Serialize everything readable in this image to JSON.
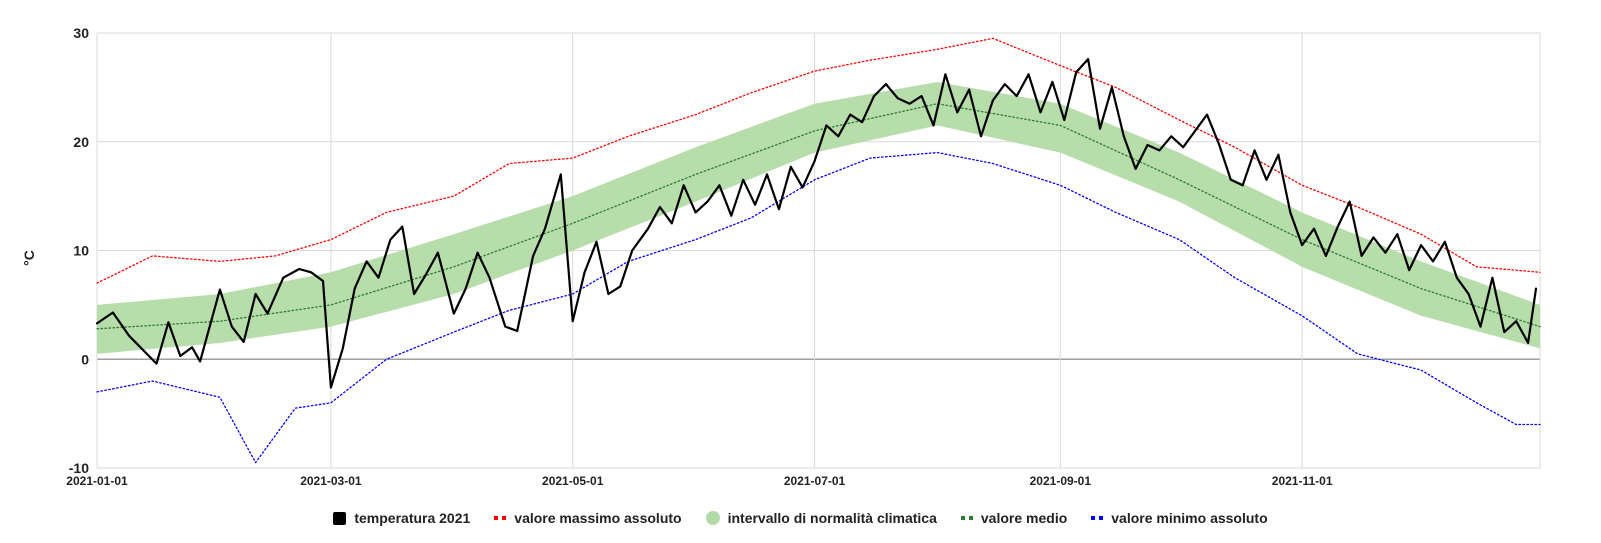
{
  "chart_data": {
    "type": "line",
    "title": "",
    "xlabel": "",
    "ylabel": "°C",
    "ylim": [
      -10,
      30
    ],
    "xlim": [
      "2021-01-01",
      "2021-12-31"
    ],
    "y_ticks": [
      "30",
      "20",
      "10",
      "0",
      "-10"
    ],
    "x_ticks": [
      "2021-01-01",
      "2021-03-01",
      "2021-05-01",
      "2021-07-01",
      "2021-09-01",
      "2021-11-01"
    ],
    "grid": true,
    "legend_placement": "bottom",
    "legend": [
      {
        "key": "temp",
        "label": "temperatura 2021",
        "marker": "square",
        "color": "#000000"
      },
      {
        "key": "max",
        "label": "valore massimo assoluto",
        "marker": "dots",
        "color": "#ff0000"
      },
      {
        "key": "band",
        "label": "intervallo di normalità climatica",
        "marker": "circle",
        "color": "#b3dba6"
      },
      {
        "key": "mean",
        "label": "valore medio",
        "marker": "dots",
        "color": "#2e7d32"
      },
      {
        "key": "min",
        "label": "valore minimo assoluto",
        "marker": "dots",
        "color": "#0000ff"
      }
    ],
    "series": [
      {
        "name": "temperatura 2021",
        "color": "#000000",
        "style": "solid",
        "points": [
          [
            "2021-01-01",
            3.3
          ],
          [
            "2021-01-05",
            4.3
          ],
          [
            "2021-01-09",
            2.2
          ],
          [
            "2021-01-13",
            0.7
          ],
          [
            "2021-01-16",
            -0.4
          ],
          [
            "2021-01-19",
            3.4
          ],
          [
            "2021-01-22",
            0.3
          ],
          [
            "2021-01-25",
            1.1
          ],
          [
            "2021-01-27",
            -0.2
          ],
          [
            "2021-02-01",
            6.4
          ],
          [
            "2021-02-04",
            3.0
          ],
          [
            "2021-02-07",
            1.6
          ],
          [
            "2021-02-10",
            6.0
          ],
          [
            "2021-02-13",
            4.2
          ],
          [
            "2021-02-17",
            7.5
          ],
          [
            "2021-02-21",
            8.3
          ],
          [
            "2021-02-24",
            8.0
          ],
          [
            "2021-02-27",
            7.2
          ],
          [
            "2021-03-01",
            -2.6
          ],
          [
            "2021-03-04",
            1.0
          ],
          [
            "2021-03-07",
            6.5
          ],
          [
            "2021-03-10",
            9.0
          ],
          [
            "2021-03-13",
            7.5
          ],
          [
            "2021-03-16",
            11.0
          ],
          [
            "2021-03-19",
            12.2
          ],
          [
            "2021-03-22",
            6.0
          ],
          [
            "2021-03-25",
            7.8
          ],
          [
            "2021-03-28",
            9.8
          ],
          [
            "2021-04-01",
            4.2
          ],
          [
            "2021-04-04",
            6.5
          ],
          [
            "2021-04-07",
            9.8
          ],
          [
            "2021-04-10",
            7.5
          ],
          [
            "2021-04-14",
            3.0
          ],
          [
            "2021-04-17",
            2.6
          ],
          [
            "2021-04-21",
            9.5
          ],
          [
            "2021-04-24",
            12.0
          ],
          [
            "2021-04-28",
            17.0
          ],
          [
            "2021-05-01",
            3.5
          ],
          [
            "2021-05-04",
            8.0
          ],
          [
            "2021-05-07",
            10.8
          ],
          [
            "2021-05-10",
            6.0
          ],
          [
            "2021-05-13",
            6.7
          ],
          [
            "2021-05-16",
            10.0
          ],
          [
            "2021-05-20",
            12.0
          ],
          [
            "2021-05-23",
            14.0
          ],
          [
            "2021-05-26",
            12.5
          ],
          [
            "2021-05-29",
            16.0
          ],
          [
            "2021-06-01",
            13.5
          ],
          [
            "2021-06-04",
            14.5
          ],
          [
            "2021-06-07",
            16.0
          ],
          [
            "2021-06-10",
            13.2
          ],
          [
            "2021-06-13",
            16.5
          ],
          [
            "2021-06-16",
            14.2
          ],
          [
            "2021-06-19",
            17.0
          ],
          [
            "2021-06-22",
            13.8
          ],
          [
            "2021-06-25",
            17.7
          ],
          [
            "2021-06-28",
            15.8
          ],
          [
            "2021-07-01",
            18.2
          ],
          [
            "2021-07-04",
            21.5
          ],
          [
            "2021-07-07",
            20.5
          ],
          [
            "2021-07-10",
            22.5
          ],
          [
            "2021-07-13",
            21.8
          ],
          [
            "2021-07-16",
            24.2
          ],
          [
            "2021-07-19",
            25.3
          ],
          [
            "2021-07-22",
            24.0
          ],
          [
            "2021-07-25",
            23.5
          ],
          [
            "2021-07-28",
            24.2
          ],
          [
            "2021-07-31",
            21.5
          ],
          [
            "2021-08-03",
            26.2
          ],
          [
            "2021-08-06",
            22.7
          ],
          [
            "2021-08-09",
            24.8
          ],
          [
            "2021-08-12",
            20.5
          ],
          [
            "2021-08-15",
            23.8
          ],
          [
            "2021-08-18",
            25.3
          ],
          [
            "2021-08-21",
            24.2
          ],
          [
            "2021-08-24",
            26.2
          ],
          [
            "2021-08-27",
            22.7
          ],
          [
            "2021-08-30",
            25.5
          ],
          [
            "2021-09-02",
            22.0
          ],
          [
            "2021-09-05",
            26.4
          ],
          [
            "2021-09-08",
            27.6
          ],
          [
            "2021-09-11",
            21.2
          ],
          [
            "2021-09-14",
            25.0
          ],
          [
            "2021-09-17",
            20.5
          ],
          [
            "2021-09-20",
            17.5
          ],
          [
            "2021-09-23",
            19.7
          ],
          [
            "2021-09-26",
            19.2
          ],
          [
            "2021-09-29",
            20.5
          ],
          [
            "2021-10-02",
            19.5
          ],
          [
            "2021-10-05",
            21.0
          ],
          [
            "2021-10-08",
            22.5
          ],
          [
            "2021-10-11",
            19.8
          ],
          [
            "2021-10-14",
            16.5
          ],
          [
            "2021-10-17",
            16.0
          ],
          [
            "2021-10-20",
            19.2
          ],
          [
            "2021-10-23",
            16.5
          ],
          [
            "2021-10-26",
            18.8
          ],
          [
            "2021-10-29",
            13.5
          ],
          [
            "2021-11-01",
            10.5
          ],
          [
            "2021-11-04",
            12.0
          ],
          [
            "2021-11-07",
            9.5
          ],
          [
            "2021-11-10",
            12.2
          ],
          [
            "2021-11-13",
            14.5
          ],
          [
            "2021-11-16",
            9.5
          ],
          [
            "2021-11-19",
            11.2
          ],
          [
            "2021-11-22",
            9.8
          ],
          [
            "2021-11-25",
            11.5
          ],
          [
            "2021-11-28",
            8.2
          ],
          [
            "2021-12-01",
            10.5
          ],
          [
            "2021-12-04",
            9.0
          ],
          [
            "2021-12-07",
            10.8
          ],
          [
            "2021-12-10",
            7.5
          ],
          [
            "2021-12-13",
            6.0
          ],
          [
            "2021-12-16",
            3.0
          ],
          [
            "2021-12-19",
            7.5
          ],
          [
            "2021-12-22",
            2.5
          ],
          [
            "2021-12-25",
            3.5
          ],
          [
            "2021-12-28",
            1.5
          ],
          [
            "2021-12-30",
            6.5
          ]
        ]
      },
      {
        "name": "valore massimo assoluto",
        "color": "#ff0000",
        "style": "dotted",
        "points": [
          [
            "2021-01-01",
            7.0
          ],
          [
            "2021-01-15",
            9.5
          ],
          [
            "2021-02-01",
            9.0
          ],
          [
            "2021-02-15",
            9.5
          ],
          [
            "2021-03-01",
            11.0
          ],
          [
            "2021-03-15",
            13.5
          ],
          [
            "2021-04-01",
            15.0
          ],
          [
            "2021-04-15",
            18.0
          ],
          [
            "2021-05-01",
            18.5
          ],
          [
            "2021-05-15",
            20.5
          ],
          [
            "2021-06-01",
            22.5
          ],
          [
            "2021-06-15",
            24.5
          ],
          [
            "2021-07-01",
            26.5
          ],
          [
            "2021-07-15",
            27.5
          ],
          [
            "2021-08-01",
            28.5
          ],
          [
            "2021-08-15",
            29.5
          ],
          [
            "2021-09-01",
            27.0
          ],
          [
            "2021-09-15",
            25.0
          ],
          [
            "2021-10-01",
            22.0
          ],
          [
            "2021-10-15",
            19.5
          ],
          [
            "2021-11-01",
            16.0
          ],
          [
            "2021-11-15",
            14.0
          ],
          [
            "2021-12-01",
            11.5
          ],
          [
            "2021-12-15",
            8.5
          ],
          [
            "2021-12-31",
            8.0
          ]
        ]
      },
      {
        "name": "valore medio",
        "color": "#2e7d32",
        "style": "dotted",
        "points": [
          [
            "2021-01-01",
            2.8
          ],
          [
            "2021-02-01",
            3.5
          ],
          [
            "2021-03-01",
            5.0
          ],
          [
            "2021-04-01",
            8.5
          ],
          [
            "2021-05-01",
            12.5
          ],
          [
            "2021-06-01",
            17.0
          ],
          [
            "2021-07-01",
            21.0
          ],
          [
            "2021-08-01",
            23.5
          ],
          [
            "2021-09-01",
            21.5
          ],
          [
            "2021-10-01",
            16.5
          ],
          [
            "2021-11-01",
            11.0
          ],
          [
            "2021-12-01",
            6.5
          ],
          [
            "2021-12-31",
            3.0
          ]
        ]
      },
      {
        "name": "valore minimo assoluto",
        "color": "#0000ff",
        "style": "dotted",
        "points": [
          [
            "2021-01-01",
            -3.0
          ],
          [
            "2021-01-15",
            -2.0
          ],
          [
            "2021-02-01",
            -3.5
          ],
          [
            "2021-02-10",
            -9.5
          ],
          [
            "2021-02-20",
            -4.5
          ],
          [
            "2021-03-01",
            -4.0
          ],
          [
            "2021-03-15",
            0.0
          ],
          [
            "2021-04-01",
            2.5
          ],
          [
            "2021-04-15",
            4.5
          ],
          [
            "2021-05-01",
            6.0
          ],
          [
            "2021-05-15",
            9.0
          ],
          [
            "2021-06-01",
            11.0
          ],
          [
            "2021-06-15",
            13.0
          ],
          [
            "2021-07-01",
            16.5
          ],
          [
            "2021-07-15",
            18.5
          ],
          [
            "2021-08-01",
            19.0
          ],
          [
            "2021-08-15",
            18.0
          ],
          [
            "2021-09-01",
            16.0
          ],
          [
            "2021-09-15",
            13.5
          ],
          [
            "2021-10-01",
            11.0
          ],
          [
            "2021-10-15",
            7.5
          ],
          [
            "2021-11-01",
            4.0
          ],
          [
            "2021-11-15",
            0.5
          ],
          [
            "2021-12-01",
            -1.0
          ],
          [
            "2021-12-15",
            -4.0
          ],
          [
            "2021-12-25",
            -6.0
          ],
          [
            "2021-12-31",
            -6.0
          ]
        ]
      }
    ],
    "band": {
      "name": "intervallo di normalità climatica",
      "color": "#b3dba6",
      "lower": [
        [
          "2021-01-01",
          0.5
        ],
        [
          "2021-02-01",
          1.5
        ],
        [
          "2021-03-01",
          3.0
        ],
        [
          "2021-04-01",
          6.0
        ],
        [
          "2021-05-01",
          10.0
        ],
        [
          "2021-06-01",
          14.5
        ],
        [
          "2021-07-01",
          19.0
        ],
        [
          "2021-08-01",
          21.5
        ],
        [
          "2021-09-01",
          19.0
        ],
        [
          "2021-10-01",
          14.5
        ],
        [
          "2021-11-01",
          8.5
        ],
        [
          "2021-12-01",
          4.0
        ],
        [
          "2021-12-31",
          1.0
        ]
      ],
      "upper": [
        [
          "2021-01-01",
          5.0
        ],
        [
          "2021-02-01",
          6.0
        ],
        [
          "2021-03-01",
          8.0
        ],
        [
          "2021-04-01",
          11.5
        ],
        [
          "2021-05-01",
          15.0
        ],
        [
          "2021-06-01",
          19.5
        ],
        [
          "2021-07-01",
          23.5
        ],
        [
          "2021-08-01",
          25.5
        ],
        [
          "2021-09-01",
          23.5
        ],
        [
          "2021-10-01",
          19.0
        ],
        [
          "2021-11-01",
          13.5
        ],
        [
          "2021-12-01",
          9.0
        ],
        [
          "2021-12-31",
          5.0
        ]
      ]
    }
  }
}
